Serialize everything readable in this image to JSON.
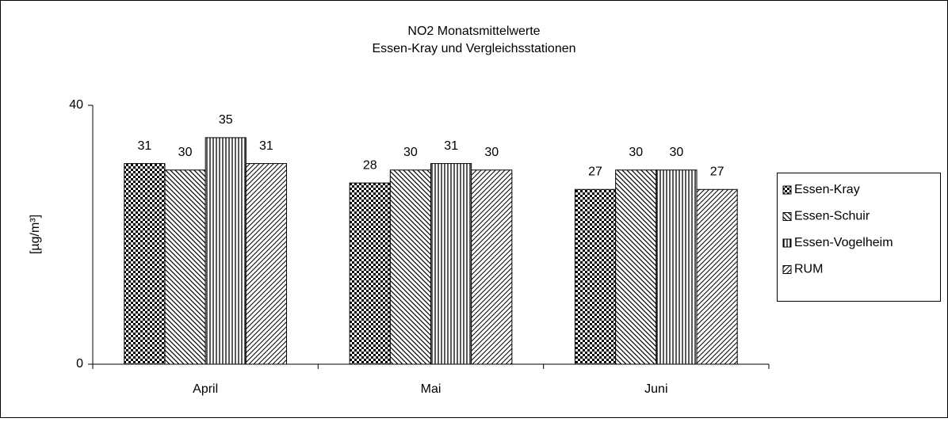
{
  "chart_data": {
    "type": "bar",
    "title": "NO2 Monatsmittelwerte",
    "subtitle": "Essen-Kray und Vergleichsstationen",
    "y_label": "[µg/m³]",
    "categories": [
      "April",
      "Mai",
      "Juni"
    ],
    "series": [
      {
        "name": "Essen-Kray",
        "color": "#000000",
        "pattern": "checker",
        "values": [
          31,
          28,
          27
        ]
      },
      {
        "name": "Essen-Schuir",
        "color": "#000000",
        "pattern": "diagonal-down",
        "values": [
          30,
          30,
          30
        ]
      },
      {
        "name": "Essen-Vogelheim",
        "color": "#000000",
        "pattern": "vertical",
        "values": [
          35,
          31,
          30
        ]
      },
      {
        "name": "RUM",
        "color": "#000000",
        "pattern": "diagonal-up",
        "values": [
          31,
          30,
          27
        ]
      }
    ],
    "ylim": [
      0,
      40
    ],
    "yticks": [
      0,
      40
    ],
    "grid": false,
    "legend": "right"
  }
}
